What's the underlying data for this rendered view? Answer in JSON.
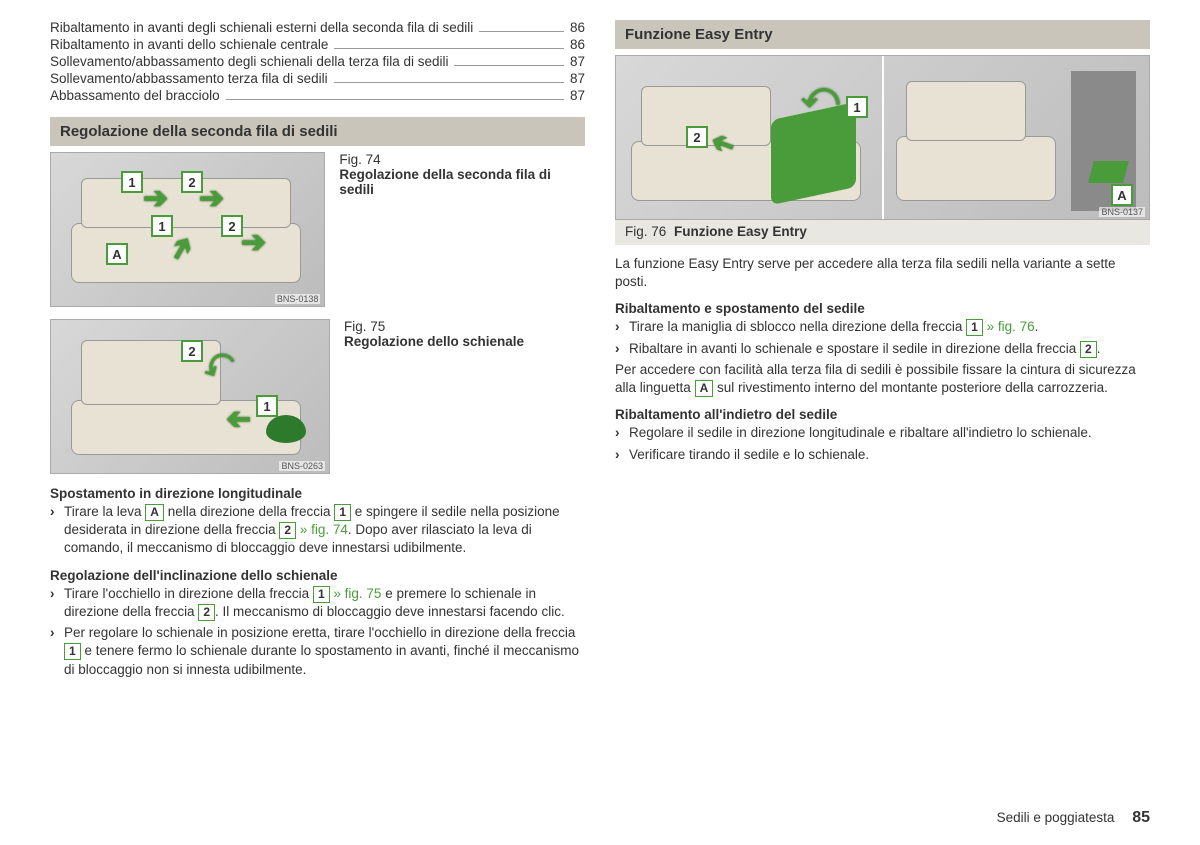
{
  "toc": [
    {
      "label": "Ribaltamento in avanti degli schienali esterni della seconda fila di sedili",
      "page": "86"
    },
    {
      "label": "Ribaltamento in avanti dello schienale centrale",
      "page": "86"
    },
    {
      "label": "Sollevamento/abbassamento degli schienali della terza fila di sedili",
      "page": "87"
    },
    {
      "label": "Sollevamento/abbassamento terza fila di sedili",
      "page": "87"
    },
    {
      "label": "Abbassamento del bracciolo",
      "page": "87"
    }
  ],
  "left": {
    "section_title": "Regolazione della seconda fila di sedili",
    "fig74": {
      "num": "Fig. 74",
      "title": "Regolazione della seconda fila di sedili",
      "code": "BNS-0138"
    },
    "fig75": {
      "num": "Fig. 75",
      "title": "Regolazione dello schienale",
      "code": "BNS-0263"
    },
    "h1": "Spostamento in direzione longitudinale",
    "b1a": "Tirare la leva ",
    "b1b": " nella direzione della freccia ",
    "b1c": " e spingere il sedile nella posizione desiderata in direzione della freccia ",
    "b1d": ". Dopo aver rilasciato la leva di comando, il meccanismo di bloccaggio deve innestarsi udibilmente.",
    "ref74": " » fig. 74",
    "h2": "Regolazione dell'inclinazione dello schienale",
    "b2a": "Tirare l'occhiello in direzione della freccia ",
    "b2b": " e premere lo schienale in direzione della freccia ",
    "b2c": ". Il meccanismo di bloccaggio deve innestarsi facendo clic.",
    "ref75": " » fig. 75",
    "b3a": "Per regolare lo schienale in posizione eretta, tirare l'occhiello in direzione della freccia ",
    "b3b": " e tenere fermo lo schienale durante lo spostamento in avanti, finché il meccanismo di bloccaggio non si innesta udibilmente."
  },
  "right": {
    "section_title": "Funzione Easy Entry",
    "fig76": {
      "num": "Fig. 76",
      "title": "Funzione Easy Entry",
      "code": "BNS-0137"
    },
    "p1": "La funzione Easy Entry serve per accedere alla terza fila sedili nella variante a sette posti.",
    "h1": "Ribaltamento e spostamento del sedile",
    "b1a": "Tirare la maniglia di sblocco nella direzione della freccia ",
    "b1b": ".",
    "ref76": " » fig. 76",
    "b2a": "Ribaltare in avanti lo schienale e spostare il sedile in direzione della freccia ",
    "b2b": ".",
    "p2a": "Per accedere con facilità alla terza fila di sedili è possibile fissare la cintura di sicurezza alla linguetta ",
    "p2b": " sul rivestimento interno del montante posteriore della carrozzeria.",
    "h2": "Ribaltamento all'indietro del sedile",
    "b3": "Regolare il sedile in direzione longitudinale e ribaltare all'indietro lo schienale.",
    "b4": "Verificare tirando il sedile e lo schienale."
  },
  "labels": {
    "A": "A",
    "n1": "1",
    "n2": "2"
  },
  "footer": {
    "section": "Sedili e poggiatesta",
    "page": "85"
  }
}
